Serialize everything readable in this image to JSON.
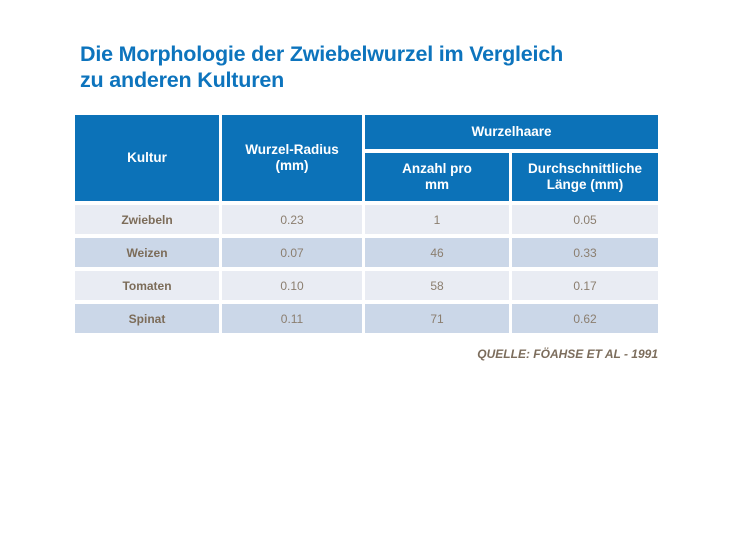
{
  "title": {
    "text": "Die Morphologie der Zwiebelwurzel im Vergleich\nzu anderen Kulturen",
    "color": "#0d74bd"
  },
  "table": {
    "header": {
      "kultur": "Kultur",
      "wurzel_radius": "Wurzel-Radius\n(mm)",
      "wurzelhaare": "Wurzelhaare",
      "anzahl_pro_mm": "Anzahl pro\nmm",
      "durchschnittliche_laenge": "Durchschnittliche\nLänge (mm)"
    },
    "rows": [
      {
        "kultur": "Zwiebeln",
        "wurzel_radius": "0.23",
        "anzahl_pro_mm": "1",
        "laenge": "0.05"
      },
      {
        "kultur": "Weizen",
        "wurzel_radius": "0.07",
        "anzahl_pro_mm": "46",
        "laenge": "0.33"
      },
      {
        "kultur": "Tomaten",
        "wurzel_radius": "0.10",
        "anzahl_pro_mm": "58",
        "laenge": "0.17"
      },
      {
        "kultur": "Spinat",
        "wurzel_radius": "0.11",
        "anzahl_pro_mm": "71",
        "laenge": "0.62"
      }
    ],
    "colors": {
      "header_bg": "#0c72b8",
      "header_text": "#ffffff",
      "row_light": "#e9ecf3",
      "row_dark": "#cbd7e8",
      "label_text": "#7c6c59",
      "value_text": "#8b7e6f"
    }
  },
  "source": {
    "text": "QUELLE: FÖAHSE ET AL - 1991",
    "color": "#7c6d5c"
  }
}
